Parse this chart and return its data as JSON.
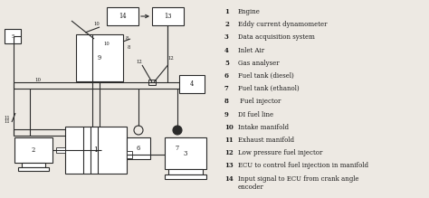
{
  "bg_color": "#ede9e3",
  "line_color": "#2a2a2a",
  "text_color": "#1a1a1a",
  "legend_numbers": [
    "1",
    "2",
    "3",
    "4",
    "5",
    "6",
    "7",
    "8",
    "9",
    "10",
    "11",
    "12",
    "13",
    "14"
  ],
  "legend_descriptions": [
    "Engine",
    "Eddy current dynamometer",
    "Data acquisition system",
    "Inlet Air",
    "Gas analyser",
    "Fuel tank (diesel)",
    "Fuel tank (ethanol)",
    " Fuel injector",
    "DI fuel line",
    "Intake manifold",
    "Exhaust manifold",
    "Low pressure fuel injector",
    "ECU to control fuel injection in manifold",
    "Input signal to ECU from crank angle\nencoder"
  ]
}
